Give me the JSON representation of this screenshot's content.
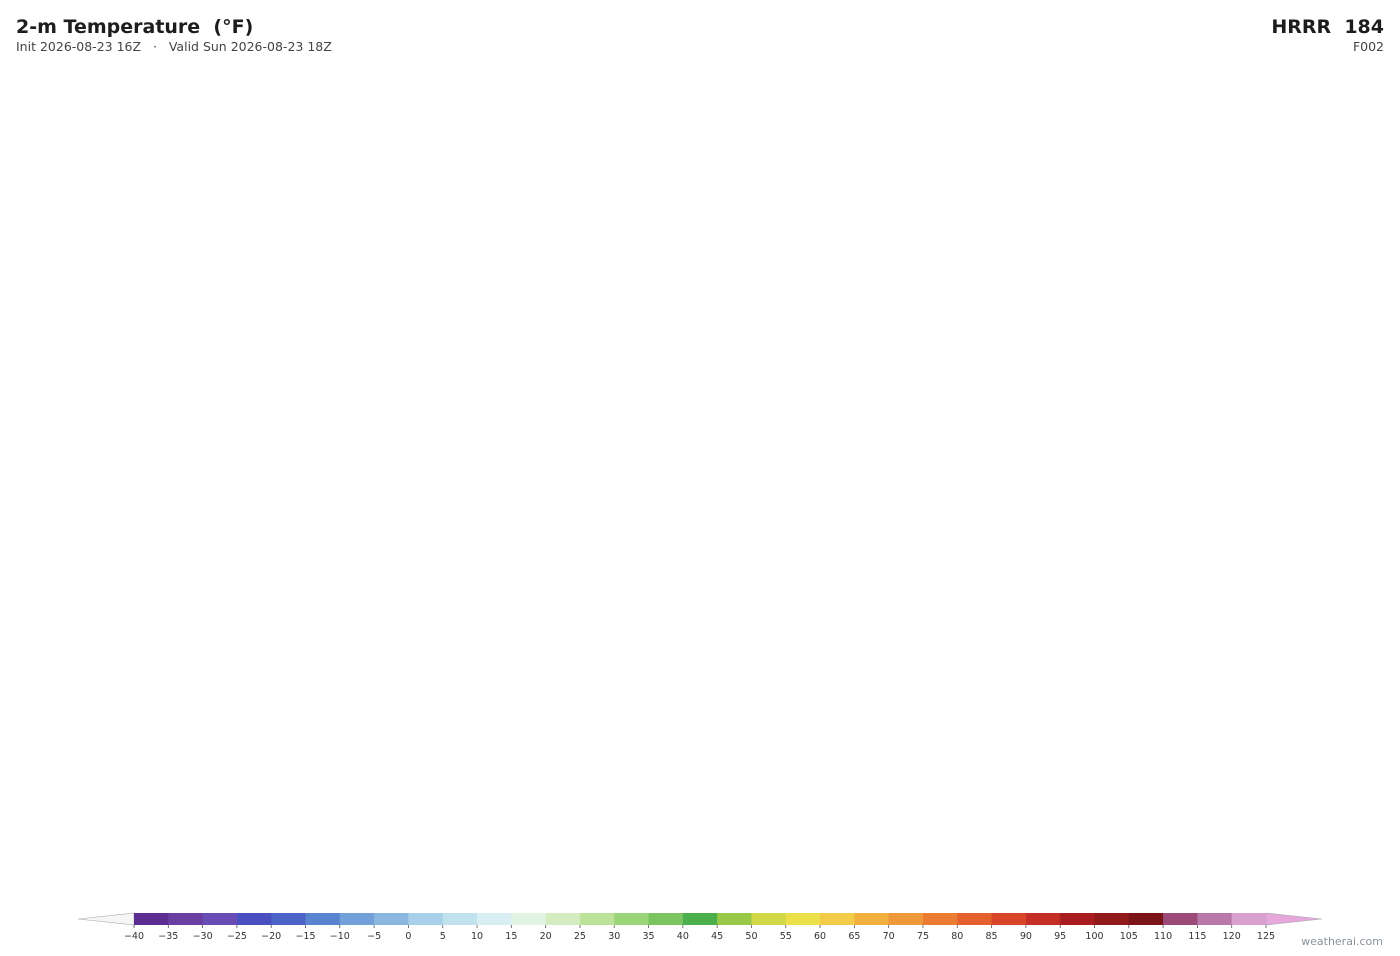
{
  "header": {
    "title": "2-m Temperature  (°F)",
    "subtitle": "Init 2026-08-23 16Z   ·   Valid Sun 2026-08-23 18Z",
    "model": "HRRR  184",
    "forecast_hour": "F002"
  },
  "colorbar": {
    "ticks": [
      {
        "value": -40,
        "label": "−40"
      },
      {
        "value": -35,
        "label": "−35"
      },
      {
        "value": -30,
        "label": "−30"
      },
      {
        "value": -25,
        "label": "−25"
      },
      {
        "value": -20,
        "label": "−20"
      },
      {
        "value": -15,
        "label": "−15"
      },
      {
        "value": -10,
        "label": "−10"
      },
      {
        "value": -5,
        "label": "−5"
      },
      0,
      5,
      10,
      15,
      20,
      25,
      30,
      35,
      40,
      45,
      50,
      55,
      60,
      65,
      70,
      75,
      80,
      85,
      90,
      95,
      100,
      105,
      110,
      115,
      120,
      125
    ],
    "colors": [
      "#5b2d8e",
      "#6b3fa0",
      "#6a4cb5",
      "#4a4fbf",
      "#4c63c8",
      "#5b84d0",
      "#73a0d8",
      "#8cb8e0",
      "#a8d0e8",
      "#c0e2ee",
      "#d8eef2",
      "#e4f4e4",
      "#d4ecc0",
      "#bce29a",
      "#9cd47a",
      "#7cc460",
      "#4caf4c",
      "#98c848",
      "#d0d848",
      "#ece04a",
      "#f2cc48",
      "#f0b040",
      "#ee983c",
      "#ea7c34",
      "#e4602c",
      "#d84428",
      "#c42e24",
      "#a81e20",
      "#901a1c",
      "#7a1418",
      "#9c4a78",
      "#b878aa",
      "#d8a0cc"
    ],
    "under_color": "#f6f6f6",
    "over_color": "#e6a8dc"
  },
  "footer": {
    "credit": "weatherai.com"
  }
}
